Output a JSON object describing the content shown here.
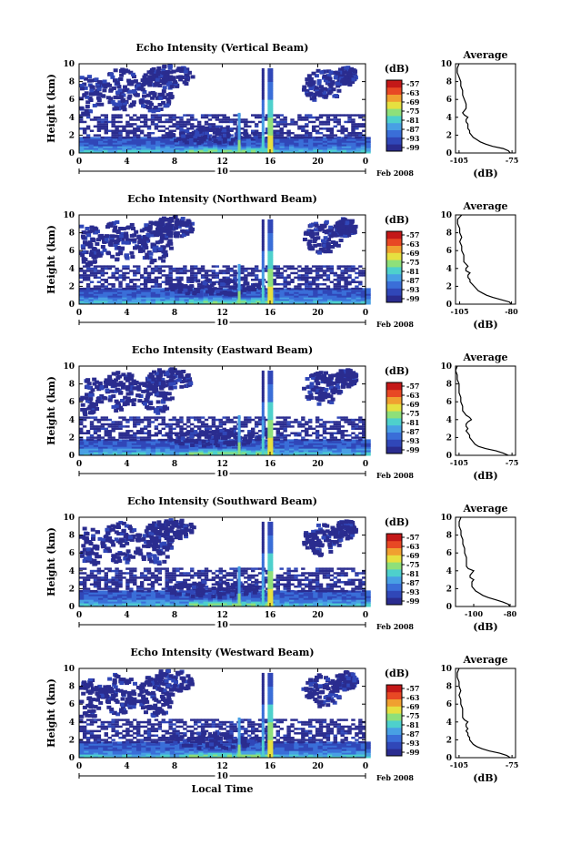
{
  "chart_data": [
    {
      "type": "heatmap",
      "title": "Echo Intensity (Vertical Beam)",
      "ylabel": "Height (km)",
      "xticks": [
        "0",
        "4",
        "8",
        "12",
        "16",
        "20",
        "0"
      ],
      "yticks": [
        "0",
        "2",
        "4",
        "6",
        "8",
        "10"
      ],
      "xlim": [
        0,
        24
      ],
      "ylim": [
        0,
        10
      ],
      "date_day": "10",
      "date_suffix": "Feb 2008",
      "colorbar": {
        "unit": "(dB)",
        "ticks": [
          "-57",
          "-63",
          "-69",
          "-75",
          "-81",
          "-87",
          "-93",
          "-99"
        ]
      },
      "profile": {
        "title": "Average",
        "xlabel": "(dB)",
        "xticks": [
          "-105",
          "-75"
        ],
        "xlim": [
          -107,
          -73
        ],
        "height": [
          0,
          0.25,
          0.5,
          0.75,
          1,
          1.25,
          1.5,
          1.75,
          2,
          2.25,
          2.5,
          2.75,
          3,
          3.25,
          3.5,
          3.75,
          4,
          4.25,
          4.5,
          4.75,
          5,
          5.5,
          6,
          6.5,
          7,
          7.5,
          8,
          8.5,
          9,
          9.5,
          10
        ],
        "db": [
          -76,
          -77,
          -80,
          -86,
          -90,
          -93,
          -95,
          -97,
          -98,
          -99,
          -99,
          -100,
          -100,
          -100,
          -101,
          -101,
          -100,
          -102,
          -103,
          -102,
          -101,
          -101,
          -102,
          -103,
          -103,
          -104,
          -104,
          -105,
          -106,
          -106,
          -105
        ]
      }
    },
    {
      "type": "heatmap",
      "title": "Echo Intensity (Northward Beam)",
      "ylabel": "Height (km)",
      "xticks": [
        "0",
        "4",
        "8",
        "12",
        "16",
        "20",
        "0"
      ],
      "yticks": [
        "0",
        "2",
        "4",
        "6",
        "8",
        "10"
      ],
      "xlim": [
        0,
        24
      ],
      "ylim": [
        0,
        10
      ],
      "date_day": "10",
      "date_suffix": "Feb 2008",
      "colorbar": {
        "unit": "(dB)",
        "ticks": [
          "-57",
          "-63",
          "-69",
          "-75",
          "-81",
          "-87",
          "-93",
          "-99"
        ]
      },
      "profile": {
        "title": "Average",
        "xlabel": "(dB)",
        "xticks": [
          "-105",
          "-80"
        ],
        "xlim": [
          -107,
          -78
        ],
        "height": [
          0,
          0.25,
          0.5,
          0.75,
          1,
          1.25,
          1.5,
          1.75,
          2,
          2.25,
          2.5,
          2.75,
          3,
          3.25,
          3.5,
          3.75,
          4,
          4.25,
          4.5,
          4.75,
          5,
          5.5,
          6,
          6.5,
          7,
          7.5,
          8,
          8.5,
          9,
          9.5,
          10
        ],
        "db": [
          -80,
          -81,
          -85,
          -89,
          -92,
          -94,
          -96,
          -97,
          -98,
          -99,
          -100,
          -100,
          -101,
          -101,
          -100,
          -102,
          -102,
          -101,
          -102,
          -103,
          -103,
          -103,
          -104,
          -104,
          -105,
          -104,
          -105,
          -105,
          -106,
          -106,
          -104
        ]
      }
    },
    {
      "type": "heatmap",
      "title": "Echo Intensity (Eastward Beam)",
      "ylabel": "Height (km)",
      "xticks": [
        "0",
        "4",
        "8",
        "12",
        "16",
        "20",
        "0"
      ],
      "yticks": [
        "0",
        "2",
        "4",
        "6",
        "8",
        "10"
      ],
      "xlim": [
        0,
        24
      ],
      "ylim": [
        0,
        10
      ],
      "date_day": "10",
      "date_suffix": "Feb 2008",
      "colorbar": {
        "unit": "(dB)",
        "ticks": [
          "-57",
          "-63",
          "-69",
          "-75",
          "-81",
          "-87",
          "-93",
          "-99"
        ]
      },
      "profile": {
        "title": "Average",
        "xlabel": "(dB)",
        "xticks": [
          "-105",
          "-75"
        ],
        "xlim": [
          -107,
          -73
        ],
        "height": [
          0,
          0.25,
          0.5,
          0.75,
          1,
          1.25,
          1.5,
          1.75,
          2,
          2.25,
          2.5,
          2.75,
          3,
          3.25,
          3.5,
          3.75,
          4,
          4.25,
          4.5,
          4.75,
          5,
          5.5,
          6,
          6.5,
          7,
          7.5,
          8,
          8.5,
          9,
          9.5,
          10
        ],
        "db": [
          -77,
          -80,
          -84,
          -90,
          -94,
          -96,
          -97,
          -98,
          -99,
          -99,
          -100,
          -101,
          -100,
          -101,
          -101,
          -100,
          -98,
          -99,
          -101,
          -102,
          -103,
          -103,
          -104,
          -104,
          -105,
          -105,
          -105,
          -106,
          -106,
          -107,
          -106
        ]
      }
    },
    {
      "type": "heatmap",
      "title": "Echo Intensity (Southward Beam)",
      "ylabel": "Height (km)",
      "xticks": [
        "0",
        "4",
        "8",
        "12",
        "16",
        "20",
        "0"
      ],
      "yticks": [
        "0",
        "2",
        "4",
        "6",
        "8",
        "10"
      ],
      "xlim": [
        0,
        24
      ],
      "ylim": [
        0,
        10
      ],
      "date_day": "10",
      "date_suffix": "Feb 2008",
      "colorbar": {
        "unit": "(dB)",
        "ticks": [
          "-57",
          "-63",
          "-69",
          "-75",
          "-81",
          "-87",
          "-93",
          "-99"
        ]
      },
      "profile": {
        "title": "Average",
        "xlabel": "(dB)",
        "xticks": [
          "-100",
          "-80"
        ],
        "xlim": [
          -110,
          -77
        ],
        "height": [
          0,
          0.25,
          0.5,
          0.75,
          1,
          1.25,
          1.5,
          1.75,
          2,
          2.25,
          2.5,
          2.75,
          3,
          3.25,
          3.5,
          3.75,
          4,
          4.25,
          4.5,
          4.75,
          5,
          5.5,
          6,
          6.5,
          7,
          7.5,
          8,
          8.5,
          9,
          9.5,
          10
        ],
        "db": [
          -80,
          -81,
          -84,
          -88,
          -92,
          -95,
          -97,
          -99,
          -100,
          -101,
          -101,
          -101,
          -100,
          -102,
          -102,
          -101,
          -100,
          -103,
          -104,
          -104,
          -104,
          -104,
          -105,
          -105,
          -106,
          -106,
          -107,
          -107,
          -108,
          -108,
          -107
        ]
      }
    },
    {
      "type": "heatmap",
      "title": "Echo Intensity (Westward Beam)",
      "ylabel": "Height (km)",
      "xlabel": "Local Time",
      "xticks": [
        "0",
        "4",
        "8",
        "12",
        "16",
        "20",
        "0"
      ],
      "yticks": [
        "0",
        "2",
        "4",
        "6",
        "8",
        "10"
      ],
      "xlim": [
        0,
        24
      ],
      "ylim": [
        0,
        10
      ],
      "date_day": "10",
      "date_suffix": "Feb 2008",
      "colorbar": {
        "unit": "(dB)",
        "ticks": [
          "-57",
          "-63",
          "-69",
          "-75",
          "-81",
          "-87",
          "-93",
          "-99"
        ]
      },
      "profile": {
        "title": "Average",
        "xlabel": "(dB)",
        "xticks": [
          "-105",
          "-75"
        ],
        "xlim": [
          -107,
          -73
        ],
        "height": [
          0,
          0.25,
          0.5,
          0.75,
          1,
          1.25,
          1.5,
          1.75,
          2,
          2.25,
          2.5,
          2.75,
          3,
          3.25,
          3.5,
          3.75,
          4,
          4.25,
          4.5,
          4.75,
          5,
          5.5,
          6,
          6.5,
          7,
          7.5,
          8,
          8.5,
          9,
          9.5,
          10
        ],
        "db": [
          -76,
          -78,
          -82,
          -88,
          -92,
          -95,
          -97,
          -98,
          -99,
          -99,
          -100,
          -100,
          -101,
          -100,
          -101,
          -101,
          -100,
          -102,
          -103,
          -103,
          -103,
          -103,
          -104,
          -104,
          -105,
          -104,
          -105,
          -105,
          -106,
          -106,
          -105
        ]
      }
    }
  ],
  "colors": {
    "palette": [
      "#2a2c8f",
      "#3047b8",
      "#3a6ed8",
      "#48a0e4",
      "#4ed0cc",
      "#8ee07a",
      "#e6e040",
      "#f0a030",
      "#e84824",
      "#c41818"
    ]
  }
}
